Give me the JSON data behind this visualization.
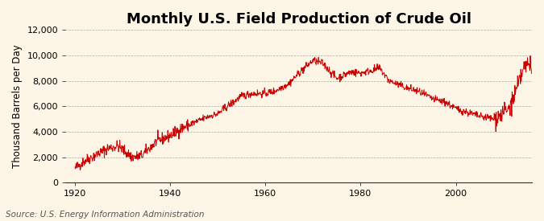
{
  "title": "Monthly U.S. Field Production of Crude Oil",
  "ylabel": "Thousand Barrels per Day",
  "source": "Source: U.S. Energy Information Administration",
  "line_color": "#cc0000",
  "background_color": "#fdf5e6",
  "grid_color": "#aaaaaa",
  "xlim": [
    1918,
    2016
  ],
  "ylim": [
    0,
    12000
  ],
  "yticks": [
    0,
    2000,
    4000,
    6000,
    8000,
    10000,
    12000
  ],
  "xticks": [
    1920,
    1940,
    1960,
    1980,
    2000
  ],
  "title_fontsize": 13,
  "label_fontsize": 8.5,
  "tick_fontsize": 8,
  "source_fontsize": 7.5
}
